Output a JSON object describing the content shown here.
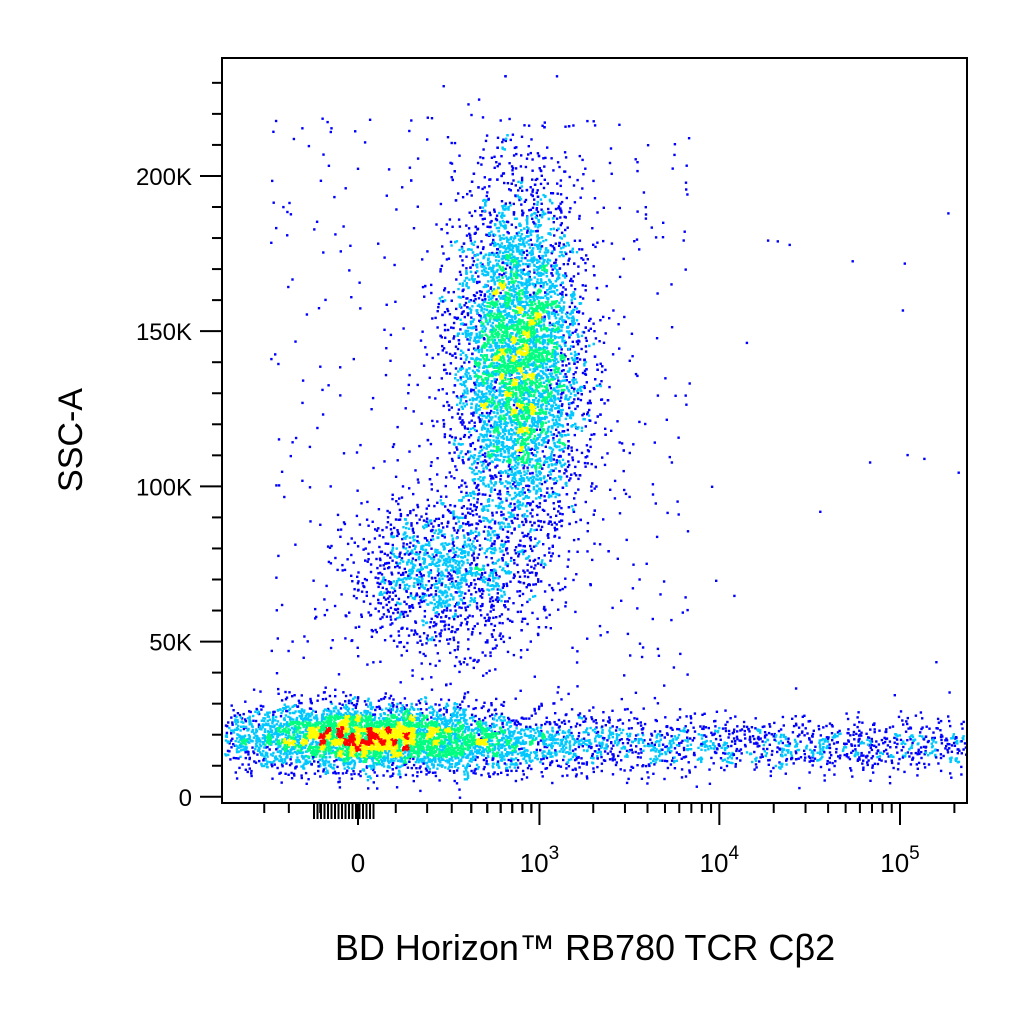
{
  "chart_data": {
    "type": "scatter",
    "style": "flow-cytometry pseudocolor density dot plot",
    "xlabel": "BD Horizon™ RB780 TCR Cβ2",
    "ylabel": "SSC-A",
    "x_scale": "biexponential",
    "x_ticks": [
      {
        "value": 0,
        "base": "0",
        "exp": ""
      },
      {
        "value": 1000,
        "base": "10",
        "exp": "3"
      },
      {
        "value": 10000,
        "base": "10",
        "exp": "4"
      },
      {
        "value": 100000,
        "base": "10",
        "exp": "5"
      }
    ],
    "y_ticks": [
      {
        "value": 0,
        "label": "0"
      },
      {
        "value": 50000,
        "label": "50K"
      },
      {
        "value": 100000,
        "label": "100K"
      },
      {
        "value": 150000,
        "label": "150K"
      },
      {
        "value": 200000,
        "label": "200K"
      }
    ],
    "ylim": [
      -2000,
      238000
    ],
    "grid": false,
    "density_colors": [
      "#0000ff",
      "#00c8ff",
      "#00ff80",
      "#ffff00",
      "#ff0000"
    ],
    "populations": [
      {
        "x_center": 10,
        "x_spread": 200,
        "y_center": 20000,
        "y_spread": 5000,
        "weight": 0.22
      },
      {
        "x_center": 750,
        "x_spread": 300,
        "y_center": 140000,
        "y_spread": 28000,
        "weight": 0.4
      },
      {
        "x_center": 250,
        "x_spread": 180,
        "y_center": 72000,
        "y_spread": 12000,
        "weight": 0.09
      },
      {
        "x_center": 300,
        "x_spread": 400,
        "y_center": 17000,
        "y_spread": 5000,
        "weight": 0.07
      },
      {
        "x_center": 18000,
        "x_spread": 20000,
        "y_center": 17000,
        "y_spread": 4500,
        "weight": 0.17
      }
    ]
  }
}
